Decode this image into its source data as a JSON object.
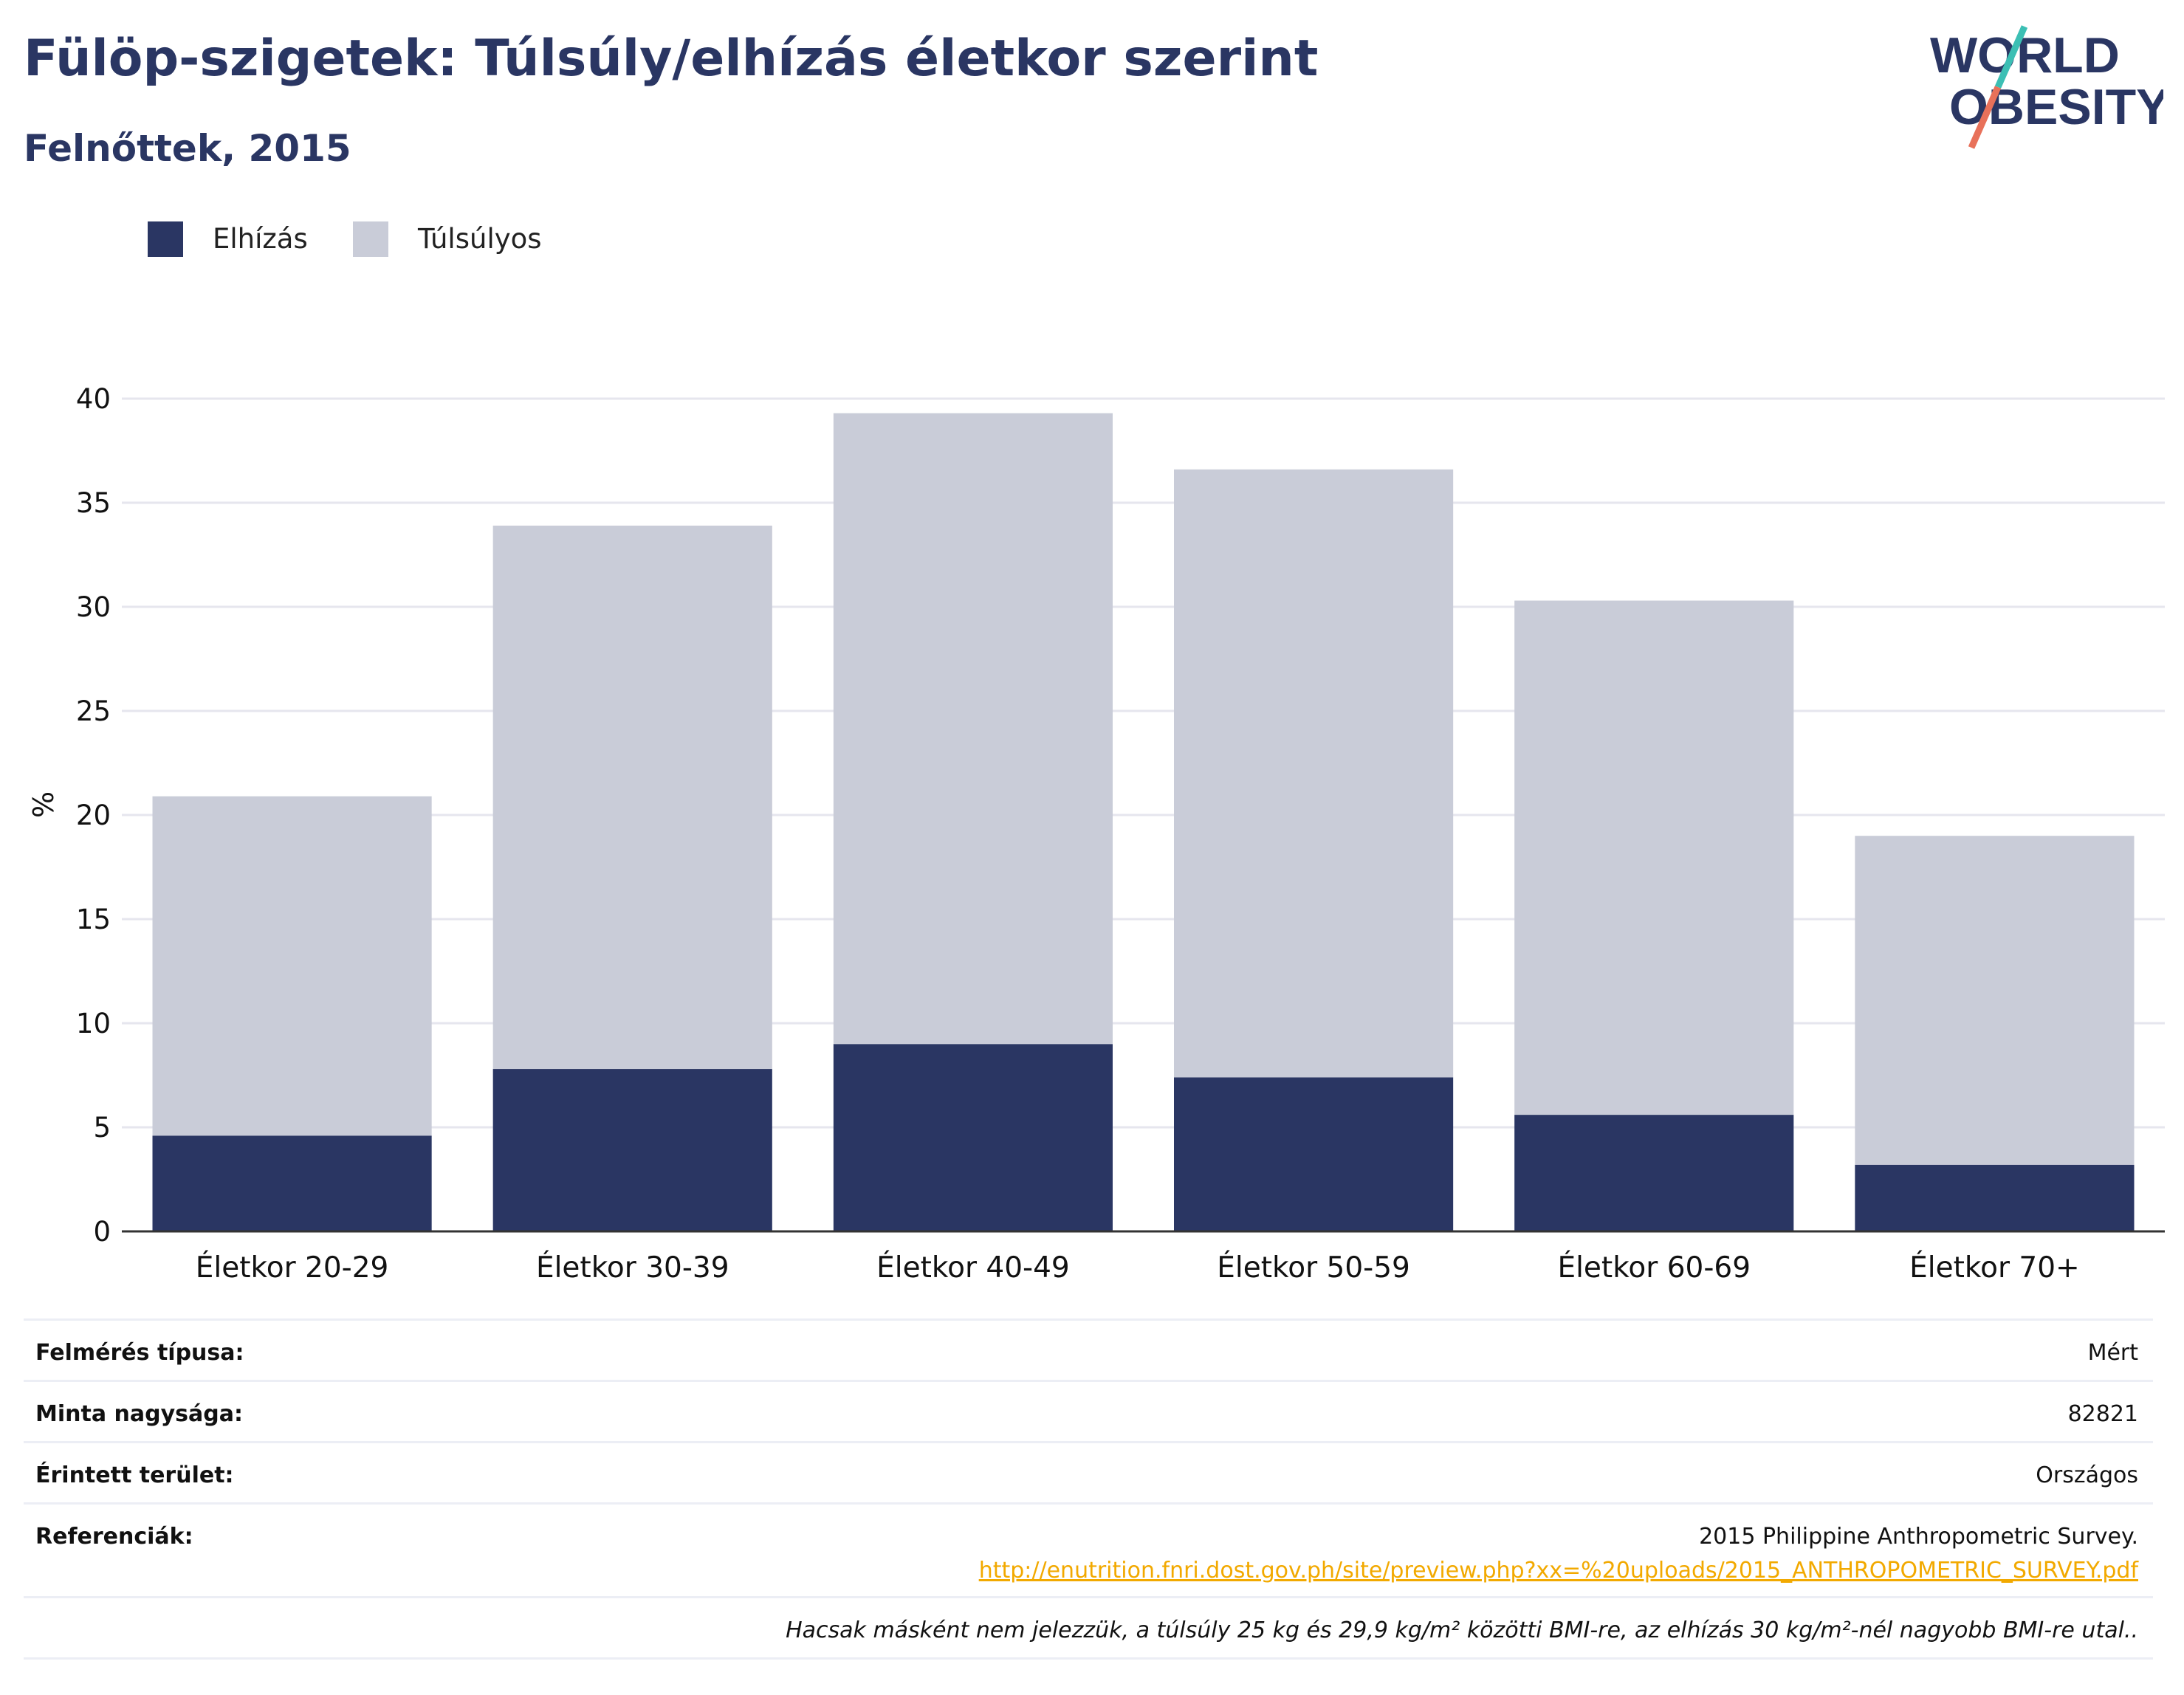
{
  "header": {
    "title": "Fülöp-szigetek: Túlsúly/elhízás életkor szerint",
    "subtitle": "Felnőttek, 2015"
  },
  "logo": {
    "line1": "WORLD",
    "line2": "OBESITY",
    "colors": {
      "text": "#2a3663",
      "slash_top": "#3cbfb4",
      "slash_bottom": "#e8715a"
    }
  },
  "legend": [
    {
      "label": "Elhízás",
      "color": "#2a3663"
    },
    {
      "label": "Túlsúlyos",
      "color": "#c9ccd8"
    }
  ],
  "chart_data": {
    "type": "bar",
    "stacked": true,
    "categories": [
      "Életkor 20-29",
      "Életkor 30-39",
      "Életkor 40-49",
      "Életkor 50-59",
      "Életkor 60-69",
      "Életkor 70+"
    ],
    "series": [
      {
        "name": "Elhízás",
        "color": "#2a3663",
        "values": [
          4.6,
          7.8,
          9.0,
          7.4,
          5.6,
          3.2
        ]
      },
      {
        "name": "Túlsúlyos",
        "color": "#c9ccd8",
        "values": [
          16.3,
          26.1,
          30.3,
          29.2,
          24.7,
          15.8
        ]
      }
    ],
    "ylabel": "%",
    "ylim": [
      0,
      40
    ],
    "yticks": [
      0,
      5,
      10,
      15,
      20,
      25,
      30,
      35,
      40
    ],
    "grid": true,
    "legend_position": "top-left"
  },
  "meta": {
    "survey_type_label": "Felmérés típusa:",
    "survey_type_value": "Mért",
    "sample_size_label": "Minta nagysága:",
    "sample_size_value": "82821",
    "area_label": "Érintett terület:",
    "area_value": "Országos",
    "references_label": "Referenciák:",
    "references_value": "2015 Philippine Anthropometric Survey.",
    "references_link": "http://enutrition.fnri.dost.gov.ph/site/preview.php?xx=%20uploads/2015_ANTHROPOMETRIC_SURVEY.pdf",
    "note": "Hacsak másként nem jelezzük, a túlsúly 25 kg és 29,9 kg/m² közötti BMI-re, az elhízás 30 kg/m²-nél nagyobb BMI-re utal.."
  }
}
